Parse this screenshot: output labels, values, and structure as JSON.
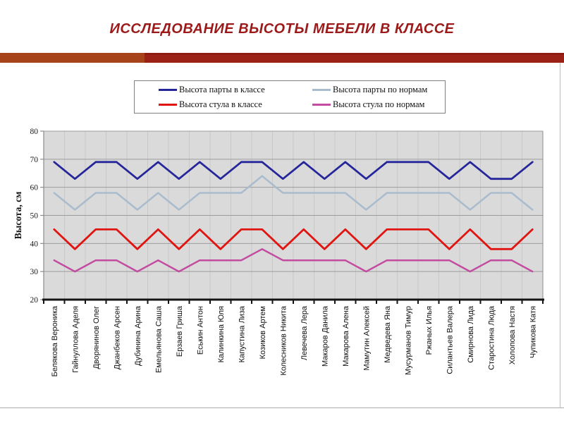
{
  "slide": {
    "title": "ИССЛЕДОВАНИЕ ВЫСОТЫ МЕБЕЛИ В КЛАССЕ"
  },
  "colors": {
    "title": "#9C1A1A",
    "divider_left": "#A7431B",
    "divider_right": "#9B2116",
    "plot_background": "#DADADA",
    "vertical_gridline": "#C8C8C8",
    "horizontal_gridline": "#9C9C9C",
    "axis_gray": "#8C8C8C",
    "axis_black": "#141414",
    "desk_class": "#26269B",
    "desk_norm": "#A9BCCE",
    "chair_class": "#E01410",
    "chair_norm": "#C34BA0"
  },
  "legend": {
    "items": [
      {
        "label": "Высота парты в классе",
        "color": "#26269B"
      },
      {
        "label": "Высота парты по нормам",
        "color": "#A9BCCE"
      },
      {
        "label": "Высота стула в классе",
        "color": "#E01410"
      },
      {
        "label": "Высота стула по нормам",
        "color": "#C34BA0"
      }
    ]
  },
  "chart_data": {
    "type": "line",
    "title": "",
    "xlabel": "",
    "ylabel": "Высота, см",
    "ylim": [
      20,
      80
    ],
    "yticks": [
      20,
      30,
      40,
      50,
      60,
      70,
      80
    ],
    "grid": true,
    "legend_position": "top",
    "categories": [
      "Белякова Вероника",
      "Гайнуллова Аделя",
      "Дворянинов Олег",
      "Джанбеков Арсен",
      "Дубинина Арина",
      "Емельянова Саша",
      "Ерзаев Гриша",
      "Еськин Антон",
      "Калинкина Юля",
      "Капустина Лиза",
      "Козиков Артем",
      "Колесников Никита",
      "Левечева Лера",
      "Макаров Данила",
      "Макарова Алена",
      "Мамутин Алексей",
      "Медведева Яна",
      "Мусурманов Тимур",
      "Ржаных Илья",
      "Силантьев Валера",
      "Смирнова Лида",
      "Старостина Люда",
      "Холопова Настя",
      "Чупикова Катя"
    ],
    "series": [
      {
        "name": "Высота парты в классе",
        "color": "#26269B",
        "width": 2.8,
        "values": [
          69,
          63,
          69,
          69,
          63,
          69,
          63,
          69,
          63,
          69,
          69,
          63,
          69,
          63,
          69,
          63,
          69,
          69,
          69,
          63,
          69,
          63,
          63,
          69
        ]
      },
      {
        "name": "Высота парты по нормам",
        "color": "#A9BCCE",
        "width": 2.5,
        "values": [
          58,
          52,
          58,
          58,
          52,
          58,
          52,
          58,
          58,
          58,
          64,
          58,
          58,
          58,
          58,
          52,
          58,
          58,
          58,
          58,
          52,
          58,
          58,
          52
        ]
      },
      {
        "name": "Высота стула в классе",
        "color": "#E01410",
        "width": 2.8,
        "values": [
          45,
          38,
          45,
          45,
          38,
          45,
          38,
          45,
          38,
          45,
          45,
          38,
          45,
          38,
          45,
          38,
          45,
          45,
          45,
          38,
          45,
          38,
          38,
          45
        ]
      },
      {
        "name": "Высота стула по нормам",
        "color": "#C34BA0",
        "width": 2.5,
        "values": [
          34,
          30,
          34,
          34,
          30,
          34,
          30,
          34,
          34,
          34,
          38,
          34,
          34,
          34,
          34,
          30,
          34,
          34,
          34,
          34,
          30,
          34,
          34,
          30
        ]
      }
    ]
  }
}
